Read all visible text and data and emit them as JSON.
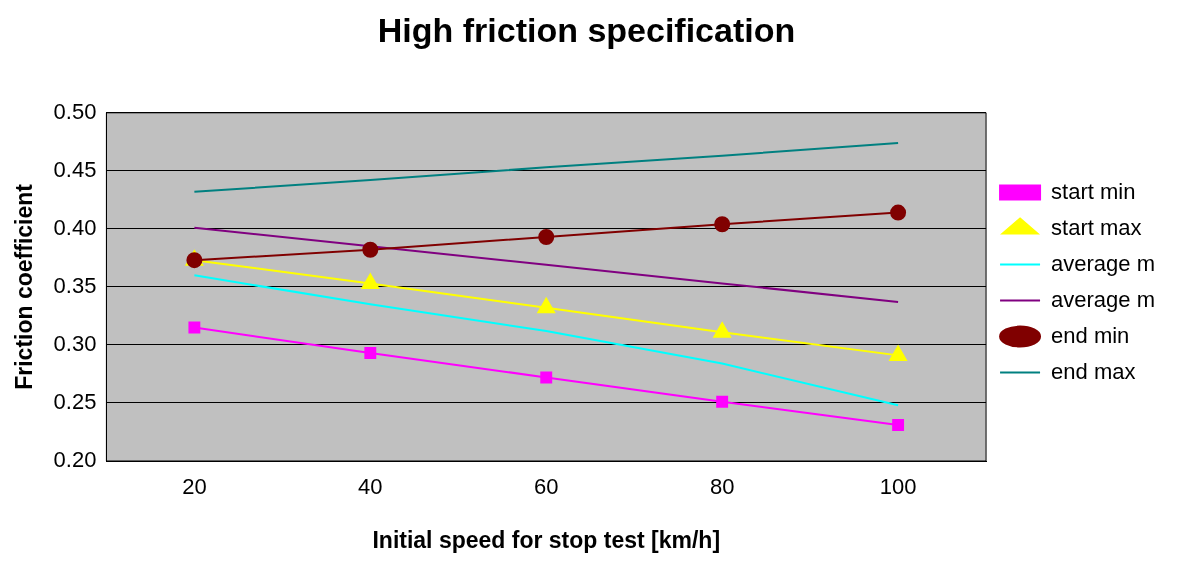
{
  "chart_data": {
    "type": "line",
    "title": "High friction specification",
    "xlabel": "Initial speed for stop test [km/h]",
    "ylabel": "Friction coefficient",
    "categories": [
      "20",
      "40",
      "60",
      "80",
      "100"
    ],
    "ylim": [
      0.2,
      0.5
    ],
    "yticks": [
      {
        "value": 0.2,
        "label": "0.20"
      },
      {
        "value": 0.25,
        "label": "0.25"
      },
      {
        "value": 0.3,
        "label": "0.30"
      },
      {
        "value": 0.35,
        "label": "0.35"
      },
      {
        "value": 0.4,
        "label": "0.40"
      },
      {
        "value": 0.45,
        "label": "0.45"
      },
      {
        "value": 0.5,
        "label": "0.50"
      }
    ],
    "grid": "y",
    "legend": "right",
    "series": [
      {
        "name": "start min",
        "color": "#ff00ff",
        "marker": "square",
        "values": [
          0.315,
          0.293,
          0.272,
          0.251,
          0.231
        ]
      },
      {
        "name": "start max",
        "color": "#ffff00",
        "marker": "triangle",
        "values": [
          0.373,
          0.353,
          0.332,
          0.311,
          0.291
        ]
      },
      {
        "name": "average m",
        "color": "#00ffff",
        "marker": "none",
        "values": [
          0.36,
          0.335,
          0.312,
          0.284,
          0.248
        ]
      },
      {
        "name": "average m",
        "color": "#800080",
        "marker": "none",
        "values": [
          0.401,
          0.385,
          0.369,
          0.353,
          0.337
        ]
      },
      {
        "name": "end min",
        "color": "#800000",
        "marker": "circle",
        "values": [
          0.373,
          0.382,
          0.393,
          0.404,
          0.414
        ]
      },
      {
        "name": "end max",
        "color": "#008080",
        "marker": "none",
        "values": [
          0.432,
          0.442,
          0.453,
          0.463,
          0.474
        ]
      }
    ]
  }
}
